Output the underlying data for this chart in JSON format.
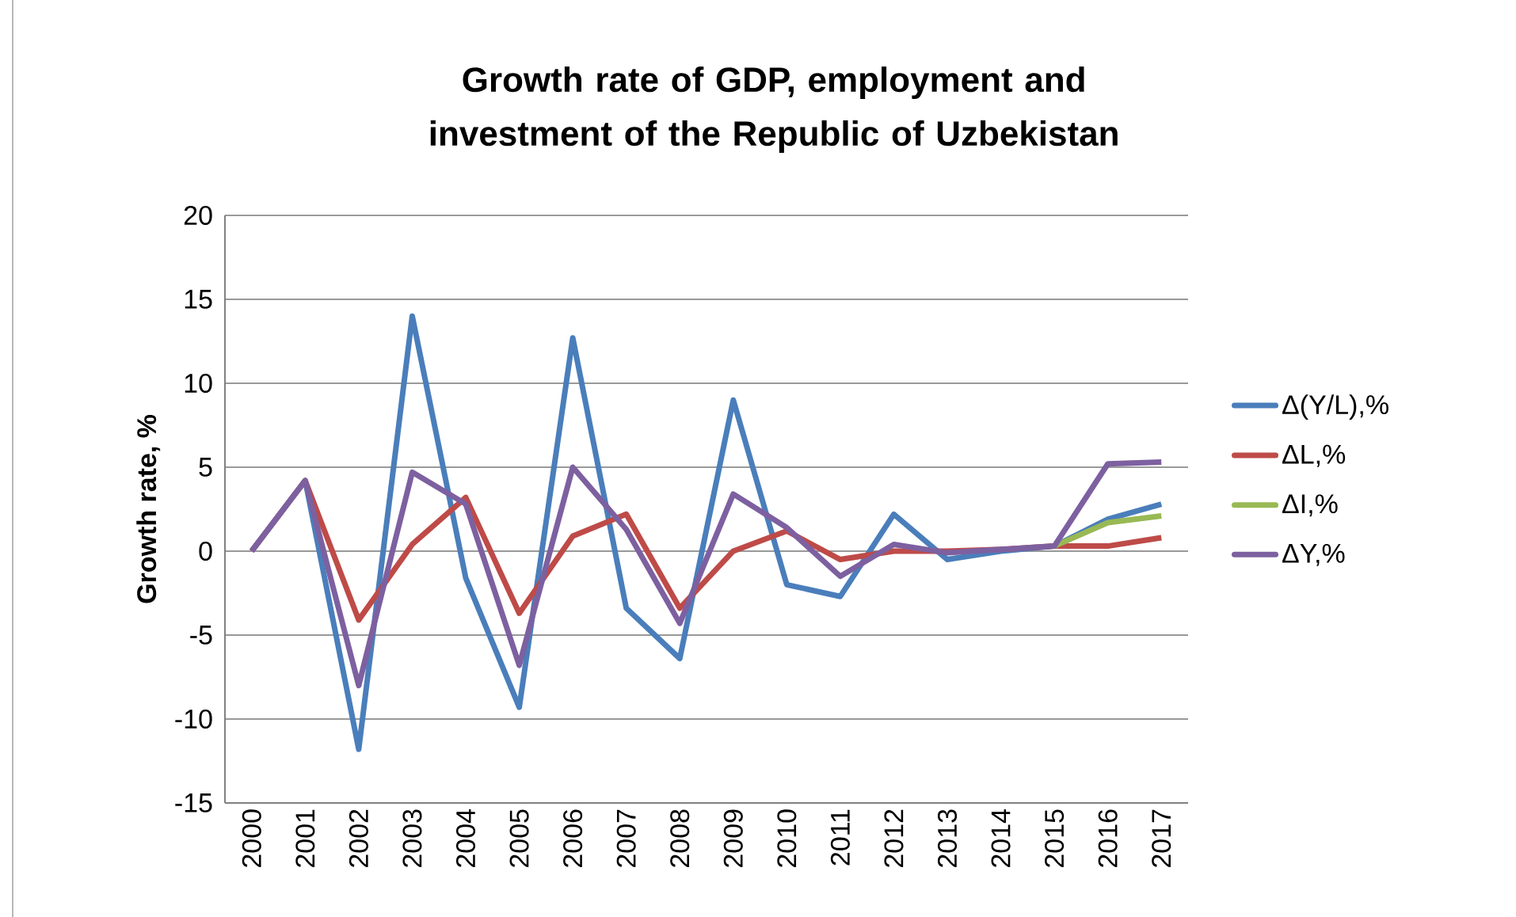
{
  "chart_data": {
    "type": "line",
    "title": "Growth rate of GDP, employment and investment of the Republic of Uzbekistan",
    "ylabel": "Growth rate, %",
    "categories": [
      "2000",
      "2001",
      "2002",
      "2003",
      "2004",
      "2005",
      "2006",
      "2007",
      "2008",
      "2009",
      "2010",
      "2011",
      "2012",
      "2013",
      "2014",
      "2015",
      "2016",
      "2017"
    ],
    "series": [
      {
        "name": "Δ(Y/L),%",
        "color": "#4a7ebb",
        "values": [
          0,
          4.2,
          -11.8,
          14,
          -1.6,
          -9.3,
          12.7,
          -3.4,
          -6.4,
          9,
          -2,
          -2.7,
          2.2,
          -0.5,
          0,
          0.3,
          1.9,
          2.8
        ]
      },
      {
        "name": "ΔL,%",
        "color": "#be4b48",
        "values": [
          0,
          4.2,
          -4.1,
          0.4,
          3.2,
          -3.7,
          0.9,
          2.2,
          -3.4,
          0,
          1.2,
          -0.5,
          0,
          0,
          0.1,
          0.3,
          0.3,
          0.8
        ]
      },
      {
        "name": "ΔI,%",
        "color": "#98b954",
        "values": [
          null,
          null,
          null,
          null,
          null,
          null,
          null,
          null,
          null,
          null,
          null,
          null,
          null,
          null,
          null,
          0.3,
          1.7,
          2.1
        ]
      },
      {
        "name": "ΔY,%",
        "color": "#7d60a0",
        "values": [
          0,
          4.2,
          -8,
          4.7,
          2.8,
          -6.8,
          5,
          1.3,
          -4.3,
          3.4,
          1.4,
          -1.5,
          0.4,
          -0.1,
          0.1,
          0.3,
          5.2,
          5.3
        ]
      }
    ],
    "ylim": [
      -15,
      20
    ],
    "yticks": [
      -15,
      -10,
      -5,
      0,
      5,
      10,
      15,
      20
    ],
    "grid": "y",
    "legend": "right",
    "line_style": "solid"
  }
}
